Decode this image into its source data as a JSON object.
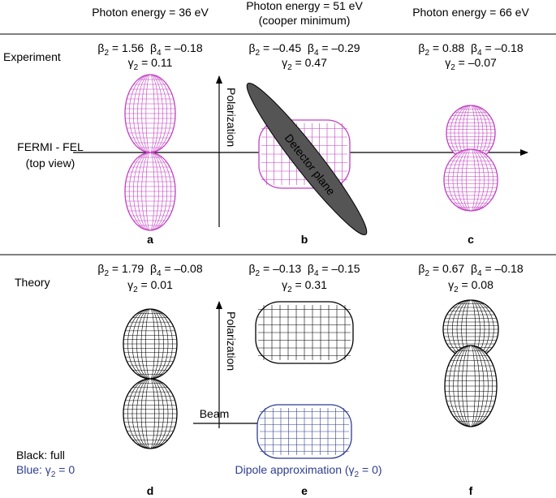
{
  "columns": [
    {
      "title": "Photon energy = 36 eV"
    },
    {
      "title": "Photon energy = 51 eV",
      "subtitle": "(cooper minimum)"
    },
    {
      "title": "Photon energy = 66 eV"
    }
  ],
  "experiment": {
    "label": "Experiment",
    "source": [
      "FERMI - FEL",
      "(top view)"
    ],
    "axis_label": "Polarization",
    "plane_label": "Detector plane",
    "panels": [
      {
        "label": "a",
        "params": [
          [
            {
              "t": "β"
            },
            {
              "sub": "2"
            },
            {
              "t": " = 1.56  β"
            },
            {
              "sub": "4"
            },
            {
              "t": " = –0.18"
            }
          ],
          [
            {
              "t": "γ"
            },
            {
              "sub": "2"
            },
            {
              "t": " = 0.11"
            }
          ]
        ]
      },
      {
        "label": "b",
        "params": [
          [
            {
              "t": "β"
            },
            {
              "sub": "2"
            },
            {
              "t": " = –0.45  β"
            },
            {
              "sub": "4"
            },
            {
              "t": " = –0.29"
            }
          ],
          [
            {
              "t": "γ"
            },
            {
              "sub": "2"
            },
            {
              "t": " = 0.47"
            }
          ]
        ]
      },
      {
        "label": "c",
        "params": [
          [
            {
              "t": "β"
            },
            {
              "sub": "2"
            },
            {
              "t": " = 0.88  β"
            },
            {
              "sub": "4"
            },
            {
              "t": " = –0.18"
            }
          ],
          [
            {
              "t": "γ"
            },
            {
              "sub": "2"
            },
            {
              "t": " = –0.07"
            }
          ]
        ]
      }
    ]
  },
  "theory": {
    "label": "Theory",
    "legend": [
      [
        {
          "t": "Black: full"
        }
      ],
      [
        {
          "t": "Blue: γ"
        },
        {
          "sub": "2"
        },
        {
          "t": " = 0"
        }
      ]
    ],
    "axis_label": "Polarization",
    "beam_label": "Beam",
    "dipole_label": [
      {
        "t": "Dipole approximation (γ"
      },
      {
        "sub": "2"
      },
      {
        "t": " = 0)"
      }
    ],
    "panels": [
      {
        "label": "d",
        "params": [
          [
            {
              "t": "β"
            },
            {
              "sub": "2"
            },
            {
              "t": " = 1.79  β"
            },
            {
              "sub": "4"
            },
            {
              "t": " = –0.08"
            }
          ],
          [
            {
              "t": "γ"
            },
            {
              "sub": "2"
            },
            {
              "t": " = 0.01"
            }
          ]
        ]
      },
      {
        "label": "e",
        "params": [
          [
            {
              "t": "β"
            },
            {
              "sub": "2"
            },
            {
              "t": " = –0.13  β"
            },
            {
              "sub": "4"
            },
            {
              "t": " = –0.15"
            }
          ],
          [
            {
              "t": "γ"
            },
            {
              "sub": "2"
            },
            {
              "t": " = 0.31"
            }
          ]
        ]
      },
      {
        "label": "f",
        "params": [
          [
            {
              "t": "β"
            },
            {
              "sub": "2"
            },
            {
              "t": " = 0.67  β"
            },
            {
              "sub": "4"
            },
            {
              "t": " = –0.18"
            }
          ],
          [
            {
              "t": "γ"
            },
            {
              "sub": "2"
            },
            {
              "t": " = 0.08"
            }
          ]
        ]
      }
    ]
  }
}
